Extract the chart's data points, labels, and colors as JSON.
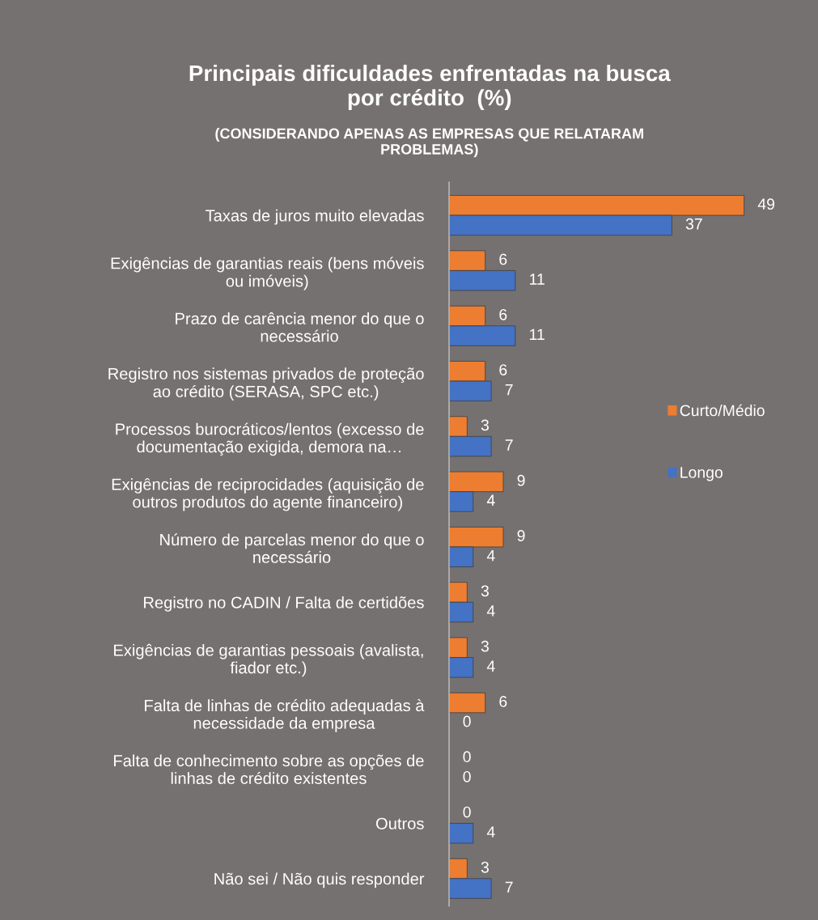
{
  "chart_data": {
    "type": "bar",
    "orientation": "horizontal",
    "title": "Principais dificuldades enfrentadas na busca\npor crédito  (%)",
    "subtitle": "(CONSIDERANDO APENAS AS EMPRESAS QUE RELATARAM\nPROBLEMAS)",
    "categories": [
      "Taxas de juros muito elevadas",
      "Exigências de garantias reais (bens móveis\nou imóveis)",
      "Prazo de carência menor do que o\nnecessário",
      "Registro nos sistemas privados de proteção\nao crédito (SERASA, SPC etc.)",
      "Processos burocráticos/lentos (excesso de\ndocumentação exigida, demora na…",
      "Exigências de reciprocidades (aquisição de\noutros produtos do agente financeiro)",
      "Número de parcelas menor do que o\nnecessário",
      "Registro no CADIN / Falta de certidões",
      "Exigências de garantias pessoais (avalista,\nfiador etc.)",
      "Falta de linhas de crédito adequadas à\nnecessidade da empresa",
      "Falta de conhecimento sobre as opções de\nlinhas de crédito existentes",
      "Outros",
      "Não sei / Não quis responder"
    ],
    "series": [
      {
        "name": "Curto/Médio",
        "color": "#ed7d31",
        "values": [
          49,
          6,
          6,
          6,
          3,
          9,
          9,
          3,
          3,
          6,
          0,
          0,
          3
        ]
      },
      {
        "name": "Longo",
        "color": "#4472c4",
        "values": [
          37,
          11,
          11,
          7,
          7,
          4,
          4,
          4,
          4,
          0,
          0,
          4,
          7
        ]
      }
    ],
    "data_labels": true,
    "legend": "right",
    "grid": false
  }
}
